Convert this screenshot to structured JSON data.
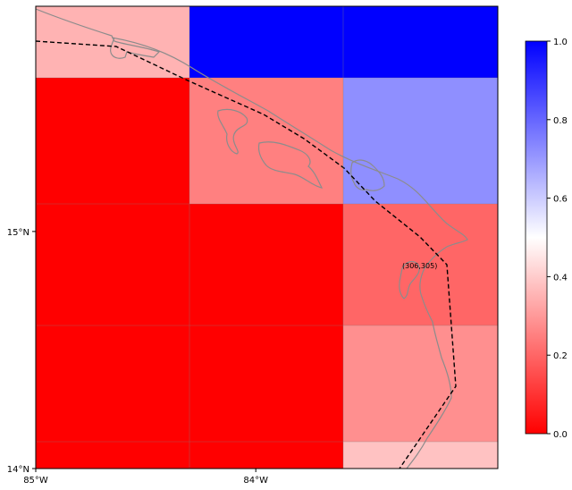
{
  "map": {
    "lon_range": [
      -85.0,
      -82.9
    ],
    "lat_range": [
      14.0,
      15.95
    ],
    "x_ticks": [
      {
        "value": -85.0,
        "label": "85°W"
      },
      {
        "value": -84.0,
        "label": "84°W"
      }
    ],
    "y_ticks": [
      {
        "value": 14.0,
        "label": "14°N"
      },
      {
        "value": 15.0,
        "label": "15°N"
      }
    ],
    "cell_values": [
      [
        0.35,
        1.0,
        1.0
      ],
      [
        0.0,
        0.25,
        0.72
      ],
      [
        0.0,
        0.0,
        0.2
      ],
      [
        0.0,
        0.0,
        0.28
      ],
      [
        0.0,
        0.0,
        0.38
      ]
    ],
    "annotation": "(306,305)",
    "track_style": "black dashed"
  },
  "colorbar": {
    "ticks": [
      {
        "value": 0.0,
        "label": "0.0"
      },
      {
        "value": 0.2,
        "label": "0.2"
      },
      {
        "value": 0.4,
        "label": "0.4"
      },
      {
        "value": 0.6,
        "label": "0.6"
      },
      {
        "value": 0.8,
        "label": "0.8"
      },
      {
        "value": 1.0,
        "label": "1.0"
      }
    ],
    "colors": [
      "#ff0000",
      "#ffffff",
      "#0000ff"
    ]
  }
}
